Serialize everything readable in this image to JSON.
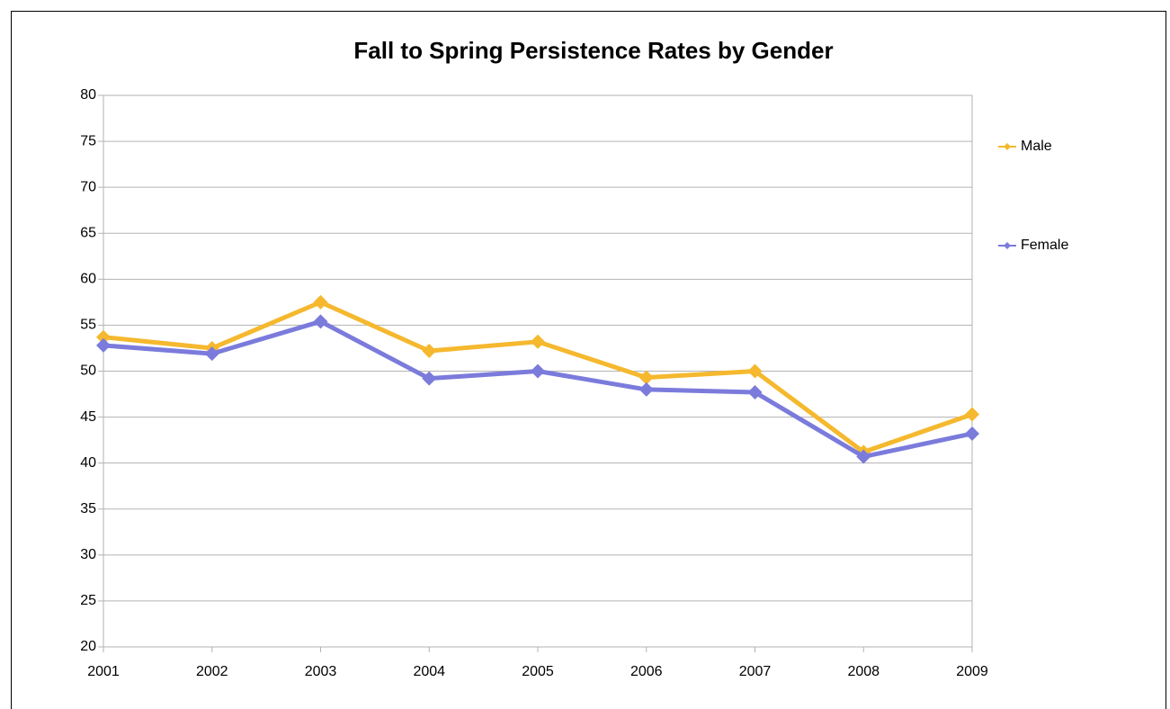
{
  "chart_data": {
    "type": "line",
    "title": "Fall to Spring Persistence Rates by Gender",
    "categories": [
      "2001",
      "2002",
      "2003",
      "2004",
      "2005",
      "2006",
      "2007",
      "2008",
      "2009"
    ],
    "series": [
      {
        "name": "Male",
        "color": "#f5b82e",
        "values": [
          53.7,
          52.5,
          57.5,
          52.2,
          53.2,
          49.3,
          50.0,
          41.2,
          45.3
        ]
      },
      {
        "name": "Female",
        "color": "#7b7bdc",
        "values": [
          52.8,
          51.9,
          55.4,
          49.2,
          50.0,
          48.0,
          47.7,
          40.7,
          43.2
        ]
      }
    ],
    "ylim": [
      20,
      80
    ],
    "yticks": [
      20,
      25,
      30,
      35,
      40,
      45,
      50,
      55,
      60,
      65,
      70,
      75,
      80
    ],
    "grid": true,
    "legend": "right"
  }
}
